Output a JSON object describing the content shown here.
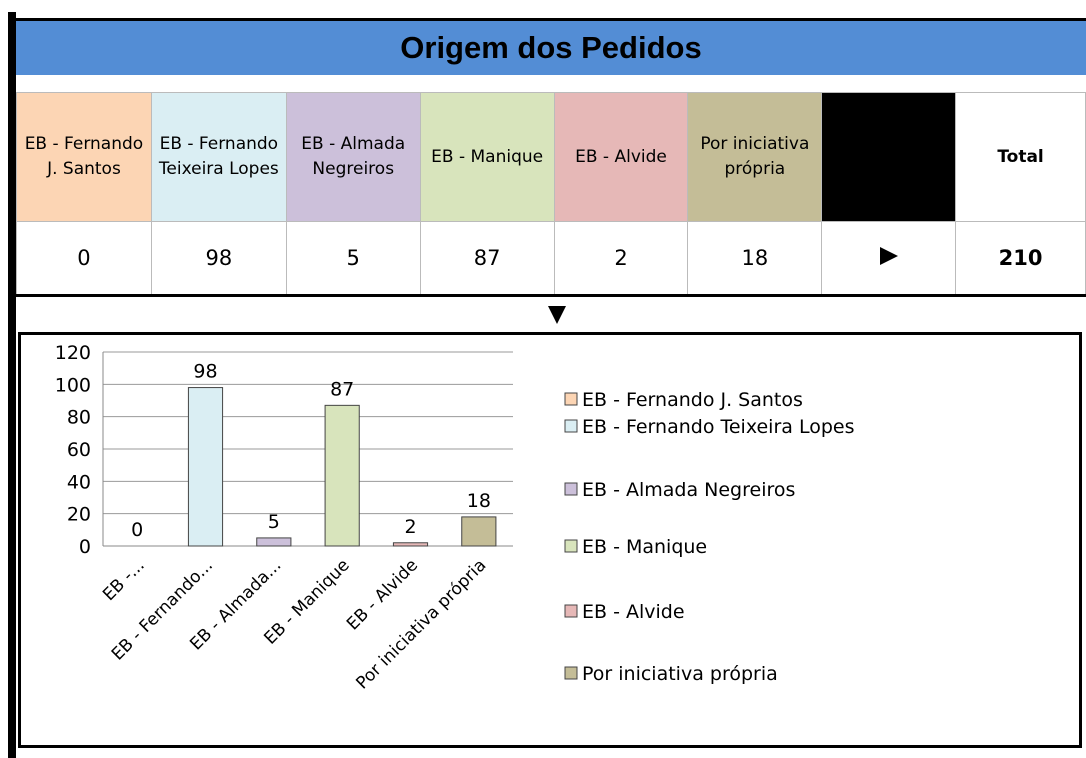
{
  "title": "Origem dos Pedidos",
  "table": {
    "headers": [
      "EB - Fernando J. Santos",
      "EB - Fernando Teixeira Lopes",
      "EB - Almada Negreiros",
      "EB - Manique",
      "EB - Alvide",
      "Por iniciativa própria"
    ],
    "total_header": "Total",
    "values": [
      0,
      98,
      5,
      87,
      2,
      18
    ],
    "total": 210
  },
  "chart_data": {
    "type": "bar",
    "categories": [
      "EB -...",
      "EB - Fernando...",
      "EB - Almada...",
      "EB - Manique",
      "EB - Alvide",
      "Por iniciativa própria"
    ],
    "legend": [
      "EB - Fernando J. Santos",
      "EB - Fernando Teixeira Lopes",
      "EB - Almada Negreiros",
      "EB - Manique",
      "EB - Alvide",
      "Por iniciativa própria"
    ],
    "values": [
      0,
      98,
      5,
      87,
      2,
      18
    ],
    "colors": [
      "#fcd5b4",
      "#daeef3",
      "#ccc0da",
      "#d8e4bc",
      "#e6b8b7",
      "#c4bd97"
    ],
    "ylim": [
      0,
      120
    ],
    "yticks": [
      0,
      20,
      40,
      60,
      80,
      100,
      120
    ],
    "grid": true
  }
}
